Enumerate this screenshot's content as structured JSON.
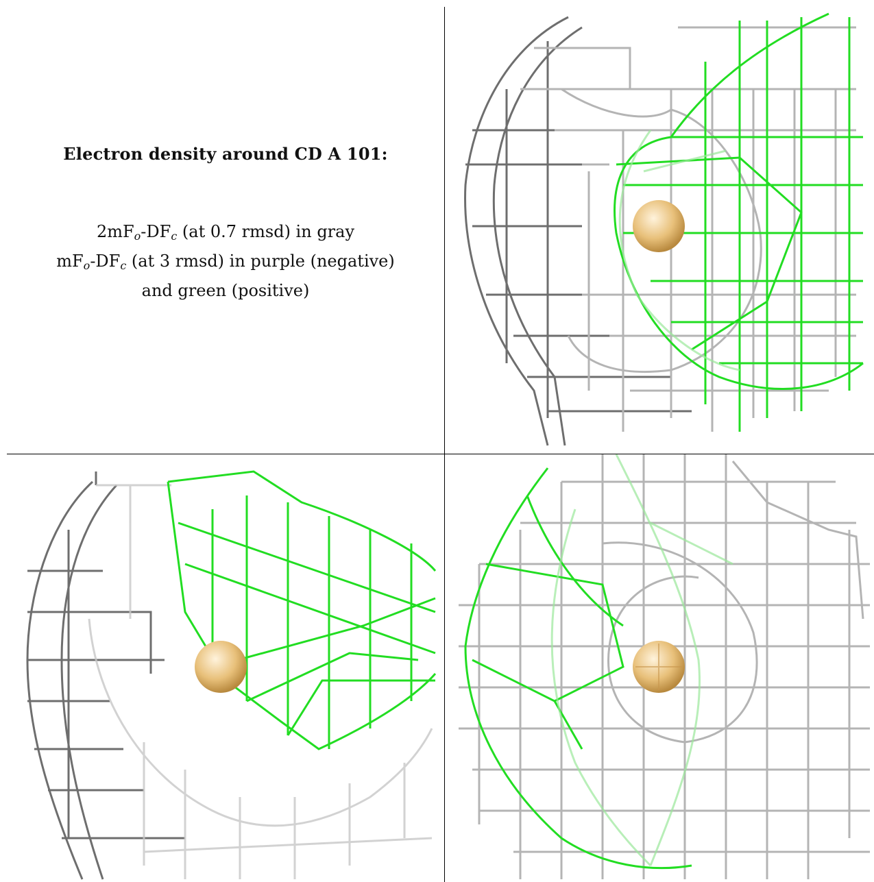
{
  "caption": {
    "title": "Electron density around CD A 101:",
    "line1": {
      "a": "2mF",
      "a_sub": "o",
      "b": "-DF",
      "b_sub": "c",
      "rest": " (at 0.7 rmsd) in gray"
    },
    "line2": {
      "a": "mF",
      "a_sub": "o",
      "b": "-DF",
      "b_sub": "c",
      "rest": " (at 3 rmsd) in purple (negative)"
    },
    "line3": "and green (positive)"
  },
  "colors": {
    "gray_mesh": "#b4b4b4",
    "dark_mesh": "#555555",
    "green_mesh": "#22dd22",
    "atom": "#e8c07a",
    "border": "#000000"
  },
  "panels": [
    {
      "name": "view-1",
      "icon": "cadmium-atom-sphere"
    },
    {
      "name": "view-2",
      "icon": "cadmium-atom-sphere"
    },
    {
      "name": "view-3",
      "icon": "cadmium-atom-sphere"
    }
  ]
}
